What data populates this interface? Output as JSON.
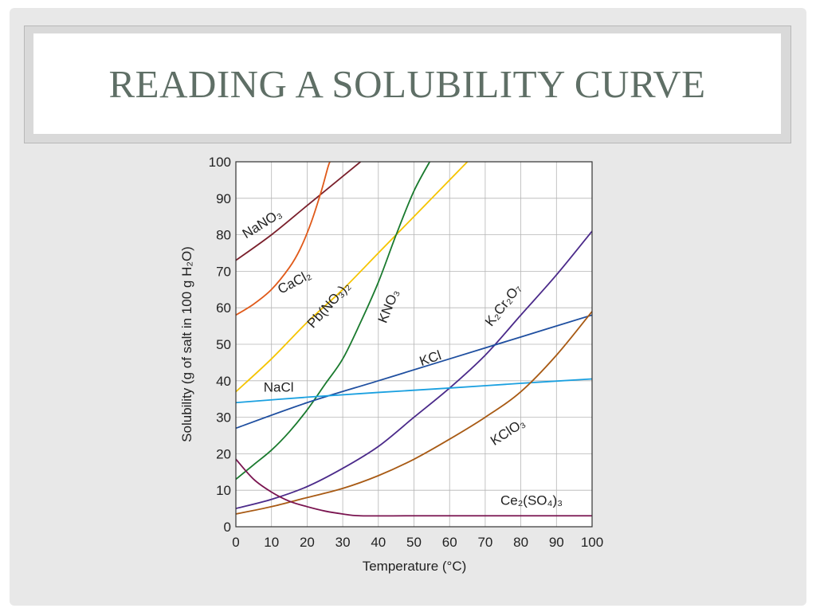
{
  "slide": {
    "title": "READING A SOLUBILITY CURVE"
  },
  "chart_data": {
    "type": "line",
    "xlabel": "Temperature (°C)",
    "ylabel": "Solubility (g of salt in 100 g H₂O)",
    "xlim": [
      0,
      100
    ],
    "ylim": [
      0,
      100
    ],
    "xticks": [
      0,
      10,
      20,
      30,
      40,
      50,
      60,
      70,
      80,
      90,
      100
    ],
    "yticks": [
      0,
      10,
      20,
      30,
      40,
      50,
      60,
      70,
      80,
      90,
      100
    ],
    "grid": true,
    "series": [
      {
        "name": "NaNO₃",
        "color": "#7a1f2b",
        "x": [
          0,
          10,
          20,
          30,
          35
        ],
        "y": [
          73,
          80,
          88,
          96,
          100
        ]
      },
      {
        "name": "CaCl₂",
        "color": "#e05a1a",
        "x": [
          0,
          5,
          10,
          15,
          18,
          21,
          24,
          26,
          27
        ],
        "y": [
          58,
          61,
          65,
          71,
          76,
          83,
          92,
          99,
          101
        ]
      },
      {
        "name": "Pb(NO₃)₂",
        "color": "#f5c400",
        "x": [
          0,
          10,
          20,
          30,
          40,
          50,
          60,
          65
        ],
        "y": [
          37,
          46,
          56,
          65,
          75,
          85,
          95,
          100
        ]
      },
      {
        "name": "KNO₃",
        "color": "#1a7a2e",
        "x": [
          0,
          5,
          10,
          15,
          20,
          25,
          30,
          35,
          40,
          45,
          50,
          55
        ],
        "y": [
          13,
          17,
          21,
          26,
          32,
          39,
          46,
          56,
          67,
          80,
          92,
          101
        ]
      },
      {
        "name": "K₂Cr₂O₇",
        "color": "#4b2a8a",
        "x": [
          0,
          10,
          20,
          30,
          40,
          50,
          60,
          70,
          80,
          90,
          100
        ],
        "y": [
          5,
          7.5,
          11,
          16,
          22,
          30,
          38,
          47,
          58,
          69,
          81
        ]
      },
      {
        "name": "KCl",
        "color": "#1f4fa0",
        "x": [
          0,
          20,
          40,
          60,
          80,
          100
        ],
        "y": [
          27,
          34,
          40,
          46,
          52,
          58
        ]
      },
      {
        "name": "NaCl",
        "color": "#1aa0e0",
        "x": [
          0,
          20,
          40,
          60,
          80,
          100
        ],
        "y": [
          34,
          35.5,
          36.8,
          38,
          39.3,
          40.5
        ]
      },
      {
        "name": "KClO₃",
        "color": "#a85a14",
        "x": [
          0,
          10,
          20,
          30,
          40,
          50,
          60,
          70,
          80,
          90,
          100
        ],
        "y": [
          3.5,
          5.5,
          8,
          10.5,
          14,
          18.5,
          24,
          30,
          37,
          47,
          59
        ]
      },
      {
        "name": "Ce₂(SO₄)₃",
        "color": "#7a1450",
        "x": [
          0,
          5,
          10,
          15,
          20,
          25,
          30,
          35,
          50,
          70,
          100
        ],
        "y": [
          18.5,
          13,
          9.5,
          7,
          5.5,
          4.3,
          3.5,
          3,
          3,
          3,
          3
        ]
      }
    ]
  }
}
